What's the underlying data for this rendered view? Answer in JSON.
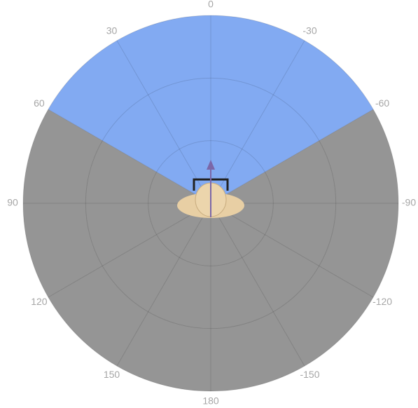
{
  "chart_data": {
    "type": "polar",
    "xticks": [
      0,
      30,
      60,
      90,
      120,
      150,
      180,
      -150,
      -120,
      -90,
      -60,
      -30
    ],
    "sector": [
      -60,
      60
    ],
    "sector_color": "#82aaf2",
    "background_color": "#959595"
  }
}
